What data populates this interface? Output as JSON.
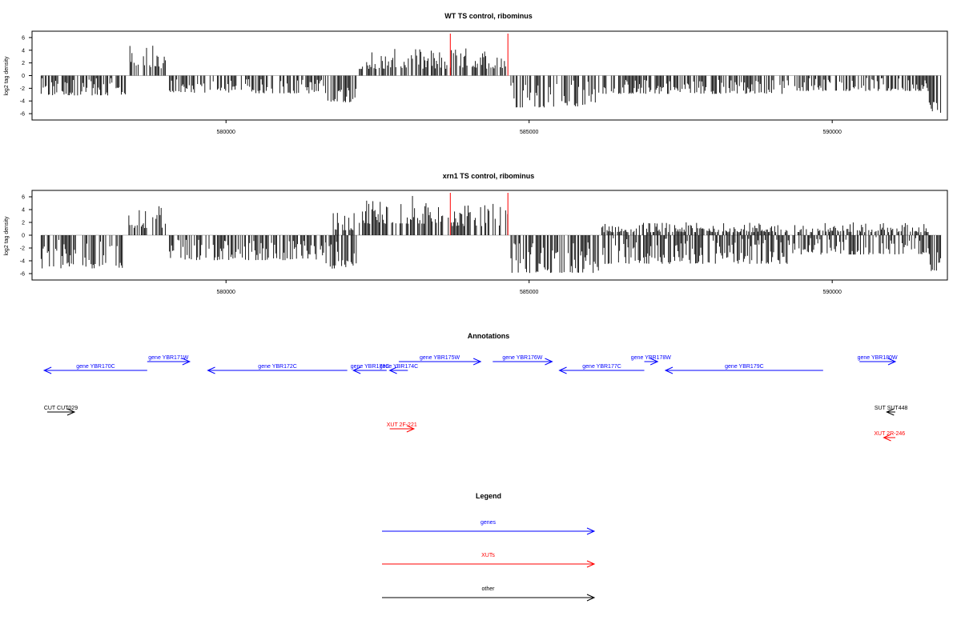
{
  "chart_data": [
    {
      "type": "bar",
      "title": "WT TS control, ribominus",
      "ylabel": "log2 tag density",
      "xlim": [
        576800,
        591900
      ],
      "ylim": [
        -7,
        7
      ],
      "yticks": [
        "6",
        "4",
        "2",
        "0",
        "-2",
        "-4",
        "-6"
      ],
      "ytick_values": [
        6,
        4,
        2,
        0,
        -2,
        -4,
        -6
      ],
      "xticks": [
        "580000",
        "585000",
        "590000"
      ],
      "xtick_values": [
        580000,
        585000,
        590000
      ],
      "marker_lines_x": [
        583700,
        584650
      ],
      "marker_color": "#ff0000",
      "bar_color": "#000000",
      "segments": [
        {
          "start": 576950,
          "end": 578350,
          "min": -3.6,
          "max": -0.4
        },
        {
          "start": 578380,
          "end": 579000,
          "min": 0.5,
          "max": 4.9
        },
        {
          "start": 579050,
          "end": 581650,
          "min": -3.2,
          "max": -0.5
        },
        {
          "start": 581680,
          "end": 582150,
          "min": -4.8,
          "max": -0.8
        },
        {
          "start": 582200,
          "end": 583650,
          "min": 0.5,
          "max": 4.2
        },
        {
          "start": 583700,
          "end": 584650,
          "min": 0.5,
          "max": 4.5
        },
        {
          "start": 584700,
          "end": 586100,
          "min": -5.8,
          "max": -0.6
        },
        {
          "start": 586150,
          "end": 589300,
          "min": -3.3,
          "max": -0.5
        },
        {
          "start": 589350,
          "end": 591600,
          "min": -2.8,
          "max": -0.3
        },
        {
          "start": 591600,
          "end": 591800,
          "min": -6.5,
          "max": -3.0
        }
      ]
    },
    {
      "type": "bar",
      "title": "xrn1 TS control, ribominus",
      "ylabel": "log2 tag density",
      "xlim": [
        576800,
        591900
      ],
      "ylim": [
        -7,
        7
      ],
      "yticks": [
        "6",
        "4",
        "2",
        "0",
        "-2",
        "-4",
        "-6"
      ],
      "ytick_values": [
        6,
        4,
        2,
        0,
        -2,
        -4,
        -6
      ],
      "xticks": [
        "580000",
        "585000",
        "590000"
      ],
      "xtick_values": [
        580000,
        585000,
        590000
      ],
      "marker_lines_x": [
        583700,
        584650
      ],
      "marker_color": "#ff0000",
      "bar_color": "#000000",
      "segments": [
        {
          "start": 576950,
          "end": 578350,
          "min": -6.0,
          "max": -0.6
        },
        {
          "start": 578380,
          "end": 579000,
          "min": 0.5,
          "max": 4.6
        },
        {
          "start": 579050,
          "end": 581650,
          "min": -4.5,
          "max": -0.5
        },
        {
          "start": 581650,
          "end": 582150,
          "min": -6.0,
          "max": -0.8
        },
        {
          "start": 581700,
          "end": 582150,
          "min": 0.3,
          "max": 3.5
        },
        {
          "start": 582200,
          "end": 583600,
          "min": 1.0,
          "max": 6.3
        },
        {
          "start": 583650,
          "end": 584650,
          "min": 0.8,
          "max": 5.0
        },
        {
          "start": 584700,
          "end": 586150,
          "min": -6.8,
          "max": -0.8
        },
        {
          "start": 586200,
          "end": 589300,
          "min": -5.2,
          "max": -0.4
        },
        {
          "start": 586200,
          "end": 589300,
          "min": 0.2,
          "max": 2.0
        },
        {
          "start": 589350,
          "end": 591600,
          "min": -3.5,
          "max": -0.3
        },
        {
          "start": 589350,
          "end": 591600,
          "min": 0.2,
          "max": 2.0
        },
        {
          "start": 591600,
          "end": 591800,
          "min": -6.2,
          "max": -2.5
        }
      ]
    }
  ],
  "annotations": {
    "title": "Annotations",
    "colors": {
      "gene": "#0000ff",
      "xut": "#ff0000",
      "other": "#000000"
    },
    "features": [
      {
        "label": "gene YBR170C",
        "start": 577000,
        "end": 578700,
        "strand": "-",
        "row": 1,
        "kind": "gene"
      },
      {
        "label": "gene YBR171W",
        "start": 578700,
        "end": 579400,
        "strand": "+",
        "row": 0,
        "kind": "gene"
      },
      {
        "label": "gene YBR172C",
        "start": 579700,
        "end": 582000,
        "strand": "-",
        "row": 1,
        "kind": "gene"
      },
      {
        "label": "gene YBR173C",
        "start": 582100,
        "end": 582650,
        "strand": "-",
        "row": 1,
        "kind": "gene"
      },
      {
        "label": "gene YBR174C",
        "start": 582700,
        "end": 583000,
        "strand": "-",
        "row": 1,
        "kind": "gene"
      },
      {
        "label": "gene YBR175W",
        "start": 582850,
        "end": 584200,
        "strand": "+",
        "row": 0,
        "kind": "gene"
      },
      {
        "label": "gene YBR176W",
        "start": 584400,
        "end": 585380,
        "strand": "+",
        "row": 0,
        "kind": "gene"
      },
      {
        "label": "gene YBR177C",
        "start": 585500,
        "end": 586900,
        "strand": "-",
        "row": 1,
        "kind": "gene"
      },
      {
        "label": "gene YBR178W",
        "start": 586900,
        "end": 587120,
        "strand": "+",
        "row": 0,
        "kind": "gene"
      },
      {
        "label": "gene YBR179C",
        "start": 587250,
        "end": 589850,
        "strand": "-",
        "row": 1,
        "kind": "gene"
      },
      {
        "label": "gene YBR180W",
        "start": 590450,
        "end": 592200,
        "strand": "+",
        "row": 0,
        "kind": "gene"
      },
      {
        "label": "CUT CUT029",
        "start": 577050,
        "end": 577500,
        "strand": "+",
        "row": 2,
        "kind": "other"
      },
      {
        "label": "SUT SUT448",
        "start": 590900,
        "end": 592100,
        "strand": "-",
        "row": 2,
        "kind": "other"
      },
      {
        "label": "XUT 2F-221",
        "start": 582700,
        "end": 583100,
        "strand": "+",
        "row": 3,
        "kind": "xut"
      },
      {
        "label": "XUT 2R-246",
        "start": 590850,
        "end": 592100,
        "strand": "-",
        "row": 4,
        "kind": "xut"
      }
    ]
  },
  "legend": {
    "title": "Legend",
    "items": [
      {
        "label": "genes",
        "color": "#0000ff"
      },
      {
        "label": "XUTs",
        "color": "#ff0000"
      },
      {
        "label": "other",
        "color": "#000000"
      }
    ]
  }
}
